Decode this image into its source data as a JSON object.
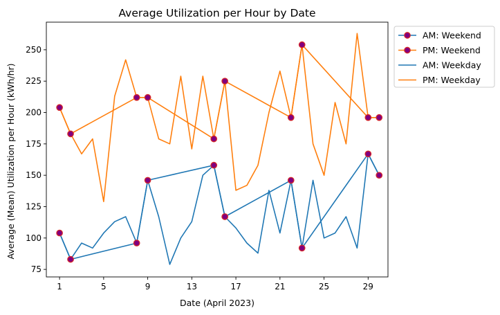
{
  "chart_data": {
    "type": "line",
    "title": "Average Utilization per Hour by Date",
    "xlabel": "Date (April 2023)",
    "ylabel": "Average (Mean) Utilization per Hour (kWh/hr)",
    "xlim": [
      -0.2,
      30.8
    ],
    "ylim": [
      69,
      272
    ],
    "xticks": [
      1,
      5,
      9,
      13,
      17,
      21,
      25,
      29
    ],
    "yticks": [
      75,
      100,
      125,
      150,
      175,
      200,
      225,
      250
    ],
    "grid": false,
    "legend_position": "outside-upper-right",
    "colors": {
      "am": "#1f77b4",
      "pm": "#ff7f0e",
      "marker_fill": "#800080",
      "marker_edge": "#d62728"
    },
    "series": [
      {
        "name": "AM: Weekend",
        "kind": "weekend",
        "style": "line-marker",
        "color": "#1f77b4",
        "x": [
          1,
          2,
          8,
          9,
          15,
          16,
          22,
          23,
          29,
          30
        ],
        "y": [
          104,
          83,
          96,
          146,
          158,
          117,
          146,
          92,
          167,
          150
        ]
      },
      {
        "name": "PM: Weekend",
        "kind": "weekend",
        "style": "line-marker",
        "color": "#ff7f0e",
        "x": [
          1,
          2,
          8,
          9,
          15,
          16,
          22,
          23,
          29,
          30
        ],
        "y": [
          204,
          183,
          212,
          212,
          179,
          225,
          196,
          254,
          196,
          196
        ]
      },
      {
        "name": "AM: Weekday",
        "kind": "all",
        "style": "line",
        "color": "#1f77b4",
        "x": [
          1,
          2,
          3,
          4,
          5,
          6,
          7,
          8,
          9,
          10,
          11,
          12,
          13,
          14,
          15,
          16,
          17,
          18,
          19,
          20,
          21,
          22,
          23,
          24,
          25,
          26,
          27,
          28,
          29,
          30
        ],
        "y": [
          104,
          83,
          96,
          92,
          104,
          113,
          117,
          96,
          146,
          117,
          79,
          100,
          113,
          150,
          158,
          117,
          108,
          96,
          88,
          138,
          104,
          146,
          92,
          146,
          100,
          104,
          117,
          92,
          167,
          150
        ]
      },
      {
        "name": "PM: Weekday",
        "kind": "all",
        "style": "line",
        "color": "#ff7f0e",
        "x": [
          1,
          2,
          3,
          4,
          5,
          6,
          7,
          8,
          9,
          10,
          11,
          12,
          13,
          14,
          15,
          16,
          17,
          18,
          19,
          20,
          21,
          22,
          23,
          24,
          25,
          26,
          27,
          28,
          29,
          30
        ],
        "y": [
          204,
          183,
          167,
          179,
          129,
          213,
          242,
          212,
          212,
          179,
          175,
          229,
          171,
          229,
          179,
          225,
          138,
          142,
          158,
          200,
          233,
          196,
          254,
          175,
          150,
          208,
          175,
          263,
          196,
          196
        ]
      }
    ]
  }
}
